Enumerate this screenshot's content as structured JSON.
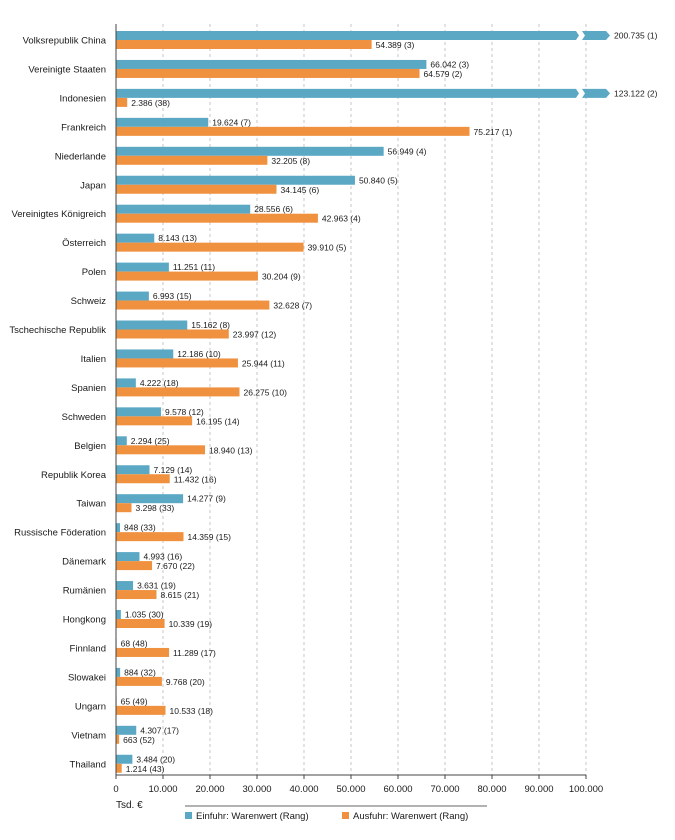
{
  "chart_data": {
    "type": "bar",
    "orientation": "horizontal",
    "unit_label": "Tsd. €",
    "xlim": [
      0,
      100000
    ],
    "x_ticks": [
      "0",
      "10.000",
      "20.000",
      "30.000",
      "40.000",
      "50.000",
      "60.000",
      "70.000",
      "80.000",
      "90.000",
      "100.000"
    ],
    "grid": "vertical-dashed",
    "legend_position": "bottom",
    "colors": {
      "import": "#5aa8c4",
      "export": "#f0913f"
    },
    "series": [
      {
        "name": "Einfuhr: Warenwert (Rang)",
        "key": "import"
      },
      {
        "name": "Ausfuhr: Warenwert (Rang)",
        "key": "export"
      }
    ],
    "categories": [
      {
        "country": "Volksrepublik China",
        "import": 200735,
        "import_label": "200.735 (1)",
        "import_truncated": true,
        "export": 54389,
        "export_label": "54.389 (3)"
      },
      {
        "country": "Vereinigte Staaten",
        "import": 66042,
        "import_label": "66.042 (3)",
        "export": 64579,
        "export_label": "64.579 (2)"
      },
      {
        "country": "Indonesien",
        "import": 123122,
        "import_label": "123.122 (2)",
        "import_truncated": true,
        "export": 2386,
        "export_label": "2.386 (38)"
      },
      {
        "country": "Frankreich",
        "import": 19624,
        "import_label": "19.624 (7)",
        "export": 75217,
        "export_label": "75.217 (1)"
      },
      {
        "country": "Niederlande",
        "import": 56949,
        "import_label": "56.949 (4)",
        "export": 32205,
        "export_label": "32.205 (8)"
      },
      {
        "country": "Japan",
        "import": 50840,
        "import_label": "50.840 (5)",
        "export": 34145,
        "export_label": "34.145 (6)"
      },
      {
        "country": "Vereinigtes Königreich",
        "import": 28556,
        "import_label": "28.556 (6)",
        "export": 42963,
        "export_label": "42.963 (4)"
      },
      {
        "country": "Österreich",
        "import": 8143,
        "import_label": "8.143 (13)",
        "export": 39910,
        "export_label": "39.910 (5)"
      },
      {
        "country": "Polen",
        "import": 11251,
        "import_label": "11.251 (11)",
        "export": 30204,
        "export_label": "30.204 (9)"
      },
      {
        "country": "Schweiz",
        "import": 6993,
        "import_label": "6.993 (15)",
        "export": 32628,
        "export_label": "32.628 (7)"
      },
      {
        "country": "Tschechische Republik",
        "import": 15162,
        "import_label": "15.162 (8)",
        "export": 23997,
        "export_label": "23.997 (12)"
      },
      {
        "country": "Italien",
        "import": 12186,
        "import_label": "12.186 (10)",
        "export": 25944,
        "export_label": "25.944 (11)"
      },
      {
        "country": "Spanien",
        "import": 4222,
        "import_label": "4.222 (18)",
        "export": 26275,
        "export_label": "26.275 (10)"
      },
      {
        "country": "Schweden",
        "import": 9578,
        "import_label": "9.578 (12)",
        "export": 16195,
        "export_label": "16.195 (14)"
      },
      {
        "country": "Belgien",
        "import": 2294,
        "import_label": "2.294 (25)",
        "export": 18940,
        "export_label": "18.940 (13)"
      },
      {
        "country": "Republik Korea",
        "import": 7129,
        "import_label": "7.129 (14)",
        "export": 11432,
        "export_label": "11.432 (16)"
      },
      {
        "country": "Taiwan",
        "import": 14277,
        "import_label": "14.277 (9)",
        "export": 3298,
        "export_label": "3.298 (33)"
      },
      {
        "country": "Russische Föderation",
        "import": 848,
        "import_label": "848 (33)",
        "export": 14359,
        "export_label": "14.359 (15)"
      },
      {
        "country": "Dänemark",
        "import": 4993,
        "import_label": "4.993 (16)",
        "export": 7670,
        "export_label": "7.670 (22)"
      },
      {
        "country": "Rumänien",
        "import": 3631,
        "import_label": "3.631 (19)",
        "export": 8615,
        "export_label": "8.615 (21)"
      },
      {
        "country": "Hongkong",
        "import": 1035,
        "import_label": "1.035 (30)",
        "export": 10339,
        "export_label": "10.339 (19)"
      },
      {
        "country": "Finnland",
        "import": 68,
        "import_label": "68 (48)",
        "export": 11289,
        "export_label": "11.289 (17)"
      },
      {
        "country": "Slowakei",
        "import": 884,
        "import_label": "884 (32)",
        "export": 9768,
        "export_label": "9.768 (20)"
      },
      {
        "country": "Ungarn",
        "import": 65,
        "import_label": "65 (49)",
        "export": 10533,
        "export_label": "10.533 (18)"
      },
      {
        "country": "Vietnam",
        "import": 4307,
        "import_label": "4.307 (17)",
        "export": 663,
        "export_label": "663 (52)"
      },
      {
        "country": "Thailand",
        "import": 3484,
        "import_label": "3.484 (20)",
        "export": 1214,
        "export_label": "1.214 (43)"
      }
    ]
  }
}
